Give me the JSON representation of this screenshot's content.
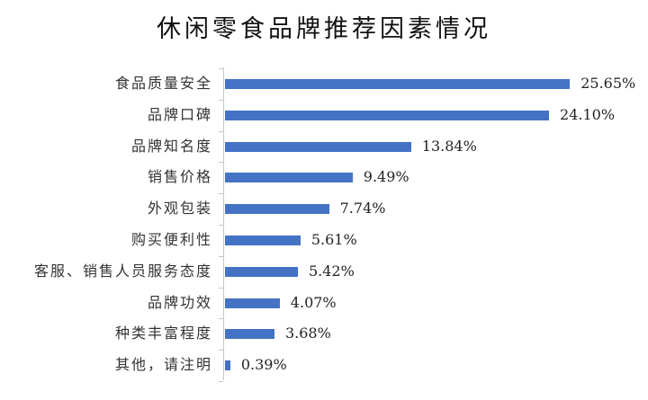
{
  "chart_data": {
    "type": "bar",
    "orientation": "horizontal",
    "title": "休闲零食品牌推荐因素情况",
    "xlabel": "",
    "ylabel": "",
    "value_suffix": "%",
    "grid": false,
    "legend": null,
    "bar_color": "#4472C4",
    "categories": [
      "食品质量安全",
      "品牌口碑",
      "品牌知名度",
      "销售价格",
      "外观包装",
      "购买便利性",
      "客服、销售人员服务态度",
      "品牌功效",
      "种类丰富程度",
      "其他，请注明"
    ],
    "values": [
      25.65,
      24.1,
      13.84,
      9.49,
      7.74,
      5.61,
      5.42,
      4.07,
      3.68,
      0.39
    ],
    "value_labels": [
      "25.65%",
      "24.10%",
      "13.84%",
      "9.49%",
      "7.74%",
      "5.61%",
      "5.42%",
      "4.07%",
      "3.68%",
      "0.39%"
    ],
    "xlim": [
      0,
      27
    ]
  }
}
